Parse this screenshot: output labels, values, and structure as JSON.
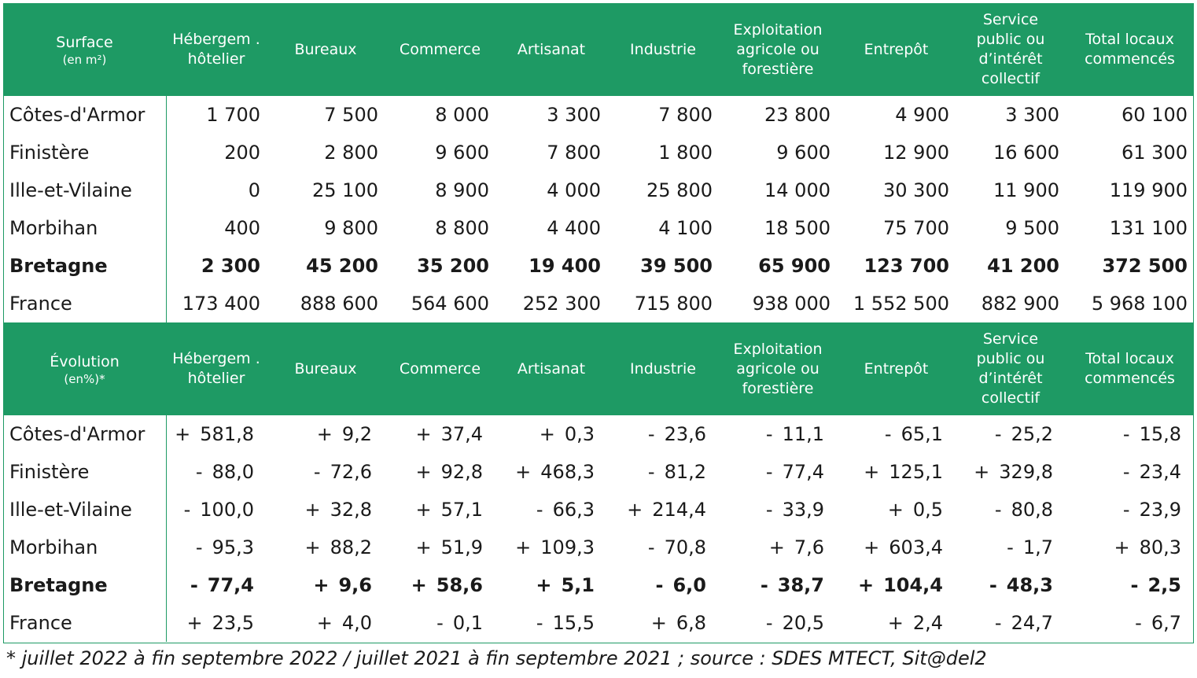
{
  "columns": [
    "Hébergem . hôtelier",
    "Bureaux",
    "Commerce",
    "Artisanat",
    "Industrie",
    "Exploitation agricole ou forestière",
    "Entrepôt",
    "Service public ou d’intérêt collectif"
  ],
  "surface": {
    "label": "Surface",
    "unit": "(en m²)",
    "total_label": "Total locaux commencés",
    "rows": [
      {
        "name": "Côtes-d'Armor",
        "values": [
          "1 700",
          "7 500",
          "8 000",
          "3 300",
          "7 800",
          "23 800",
          "4 900",
          "3 300",
          "60 100"
        ]
      },
      {
        "name": "Finistère",
        "values": [
          "200",
          "2 800",
          "9 600",
          "7 800",
          "1 800",
          "9 600",
          "12 900",
          "16 600",
          "61 300"
        ]
      },
      {
        "name": "Ille-et-Vilaine",
        "values": [
          "0",
          "25 100",
          "8 900",
          "4 000",
          "25 800",
          "14 000",
          "30 300",
          "11 900",
          "119 900"
        ]
      },
      {
        "name": "Morbihan",
        "values": [
          "400",
          "9 800",
          "8 800",
          "4 400",
          "4 100",
          "18 500",
          "75 700",
          "9 500",
          "131 100"
        ]
      },
      {
        "name": "Bretagne",
        "values": [
          "2 300",
          "45 200",
          "35 200",
          "19 400",
          "39 500",
          "65 900",
          "123 700",
          "41 200",
          "372 500"
        ]
      },
      {
        "name": "France",
        "values": [
          "173 400",
          "888 600",
          "564 600",
          "252 300",
          "715 800",
          "938 000",
          "1 552 500",
          "882 900",
          "5 968 100"
        ]
      }
    ]
  },
  "evolution": {
    "label": "Évolution",
    "unit": "(en%)*",
    "total_label": "Total locaux commencés",
    "rows": [
      {
        "name": "Côtes-d'Armor",
        "values": [
          [
            "+",
            "581,8"
          ],
          [
            "+",
            "9,2"
          ],
          [
            "+",
            "37,4"
          ],
          [
            "+",
            "0,3"
          ],
          [
            "-",
            "23,6"
          ],
          [
            "-",
            "11,1"
          ],
          [
            "-",
            "65,1"
          ],
          [
            "-",
            "25,2"
          ],
          [
            "-",
            "15,8"
          ]
        ]
      },
      {
        "name": "Finistère",
        "values": [
          [
            "-",
            "88,0"
          ],
          [
            "-",
            "72,6"
          ],
          [
            "+",
            "92,8"
          ],
          [
            "+",
            "468,3"
          ],
          [
            "-",
            "81,2"
          ],
          [
            "-",
            "77,4"
          ],
          [
            "+",
            "125,1"
          ],
          [
            "+",
            "329,8"
          ],
          [
            "-",
            "23,4"
          ]
        ]
      },
      {
        "name": "Ille-et-Vilaine",
        "values": [
          [
            "-",
            "100,0"
          ],
          [
            "+",
            "32,8"
          ],
          [
            "+",
            "57,1"
          ],
          [
            "-",
            "66,3"
          ],
          [
            "+",
            "214,4"
          ],
          [
            "-",
            "33,9"
          ],
          [
            "+",
            "0,5"
          ],
          [
            "-",
            "80,8"
          ],
          [
            "-",
            "23,9"
          ]
        ]
      },
      {
        "name": "Morbihan",
        "values": [
          [
            "-",
            "95,3"
          ],
          [
            "+",
            "88,2"
          ],
          [
            "+",
            "51,9"
          ],
          [
            "+",
            "109,3"
          ],
          [
            "-",
            "70,8"
          ],
          [
            "+",
            "7,6"
          ],
          [
            "+",
            "603,4"
          ],
          [
            "-",
            "1,7"
          ],
          [
            "+",
            "80,3"
          ]
        ]
      },
      {
        "name": "Bretagne",
        "values": [
          [
            "-",
            "77,4"
          ],
          [
            "+",
            "9,6"
          ],
          [
            "+",
            "58,6"
          ],
          [
            "+",
            "5,1"
          ],
          [
            "-",
            "6,0"
          ],
          [
            "-",
            "38,7"
          ],
          [
            "+",
            "104,4"
          ],
          [
            "-",
            "48,3"
          ],
          [
            "-",
            "2,5"
          ]
        ]
      },
      {
        "name": "France",
        "values": [
          [
            "+",
            "23,5"
          ],
          [
            "+",
            "4,0"
          ],
          [
            "-",
            "0,1"
          ],
          [
            "-",
            "15,5"
          ],
          [
            "+",
            "6,8"
          ],
          [
            "-",
            "20,5"
          ],
          [
            "+",
            "2,4"
          ],
          [
            "-",
            "24,7"
          ],
          [
            "-",
            "6,7"
          ]
        ]
      }
    ]
  },
  "bold_row": "Bretagne",
  "footnote": "* juillet 2022 à fin septembre 2022 / juillet 2021 à fin septembre 2021 ; source : SDES MTECT, Sit@del2",
  "colors": {
    "header_bg": "#1e9a64",
    "header_text": "#ffffff"
  }
}
